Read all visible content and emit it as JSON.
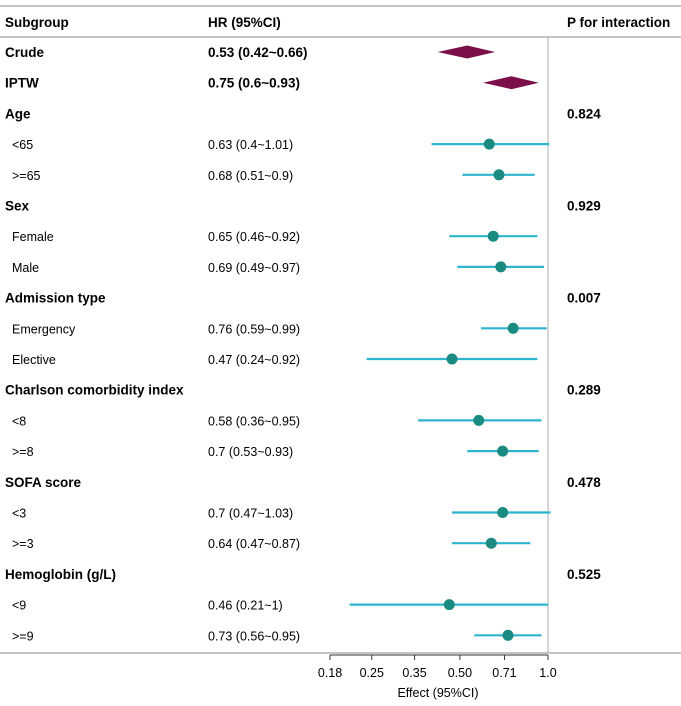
{
  "chart_data": {
    "type": "forest",
    "title": "",
    "columns": {
      "subgroup": "Subgroup",
      "hr": "HR (95%CI)",
      "p": "P for interaction"
    },
    "xlabel": "Effect (95%CI)",
    "x_scale": "log",
    "xlim": [
      0.18,
      1.0
    ],
    "xticks": [
      "0.18",
      "0.25",
      "0.35",
      "0.50",
      "0.71",
      "1.0"
    ],
    "xtick_values": [
      0.18,
      0.25,
      0.35,
      0.5,
      0.71,
      1.0
    ],
    "reference_line": 1.0,
    "rows": [
      {
        "label": "Crude",
        "kind": "overall",
        "hr_text": "0.53 (0.42~0.66)",
        "est": 0.53,
        "lo": 0.42,
        "hi": 0.66,
        "p": ""
      },
      {
        "label": "IPTW",
        "kind": "overall",
        "hr_text": "0.75 (0.6~0.93)",
        "est": 0.75,
        "lo": 0.6,
        "hi": 0.93,
        "p": ""
      },
      {
        "label": "Age",
        "kind": "group",
        "hr_text": "",
        "p": "0.824"
      },
      {
        "label": "<65",
        "kind": "sub",
        "hr_text": "0.63 (0.4~1.01)",
        "est": 0.63,
        "lo": 0.4,
        "hi": 1.01,
        "p": ""
      },
      {
        "label": ">=65",
        "kind": "sub",
        "hr_text": "0.68 (0.51~0.9)",
        "est": 0.68,
        "lo": 0.51,
        "hi": 0.9,
        "p": ""
      },
      {
        "label": "Sex",
        "kind": "group",
        "hr_text": "",
        "p": "0.929"
      },
      {
        "label": "Female",
        "kind": "sub",
        "hr_text": "0.65 (0.46~0.92)",
        "est": 0.65,
        "lo": 0.46,
        "hi": 0.92,
        "p": ""
      },
      {
        "label": "Male",
        "kind": "sub",
        "hr_text": "0.69 (0.49~0.97)",
        "est": 0.69,
        "lo": 0.49,
        "hi": 0.97,
        "p": ""
      },
      {
        "label": "Admission type",
        "kind": "group",
        "hr_text": "",
        "p": "0.007"
      },
      {
        "label": "Emergency",
        "kind": "sub",
        "hr_text": "0.76 (0.59~0.99)",
        "est": 0.76,
        "lo": 0.59,
        "hi": 0.99,
        "p": ""
      },
      {
        "label": "Elective",
        "kind": "sub",
        "hr_text": "0.47 (0.24~0.92)",
        "est": 0.47,
        "lo": 0.24,
        "hi": 0.92,
        "p": ""
      },
      {
        "label": "Charlson  comorbidity index",
        "kind": "group",
        "hr_text": "",
        "p": "0.289"
      },
      {
        "label": "<8",
        "kind": "sub",
        "hr_text": "0.58 (0.36~0.95)",
        "est": 0.58,
        "lo": 0.36,
        "hi": 0.95,
        "p": ""
      },
      {
        "label": ">=8",
        "kind": "sub",
        "hr_text": "0.7 (0.53~0.93)",
        "est": 0.7,
        "lo": 0.53,
        "hi": 0.93,
        "p": ""
      },
      {
        "label": "SOFA score",
        "kind": "group",
        "hr_text": "",
        "p": "0.478"
      },
      {
        "label": "<3",
        "kind": "sub",
        "hr_text": "0.7 (0.47~1.03)",
        "est": 0.7,
        "lo": 0.47,
        "hi": 1.03,
        "p": ""
      },
      {
        "label": ">=3",
        "kind": "sub",
        "hr_text": "0.64 (0.47~0.87)",
        "est": 0.64,
        "lo": 0.47,
        "hi": 0.87,
        "p": ""
      },
      {
        "label": "Hemoglobin (g/L)",
        "kind": "group",
        "hr_text": "",
        "p": "0.525"
      },
      {
        "label": "<9",
        "kind": "sub",
        "hr_text": "0.46 (0.21~1)",
        "est": 0.46,
        "lo": 0.21,
        "hi": 1.0,
        "p": ""
      },
      {
        "label": ">=9",
        "kind": "sub",
        "hr_text": "0.73 (0.56~0.95)",
        "est": 0.73,
        "lo": 0.56,
        "hi": 0.95,
        "p": ""
      }
    ],
    "colors": {
      "diamond": "#7a0f4a",
      "ci_line": "#2bb5cf",
      "point": "#1b8a80",
      "ref_line": "#bbbbbb",
      "rule": "#888888"
    }
  }
}
